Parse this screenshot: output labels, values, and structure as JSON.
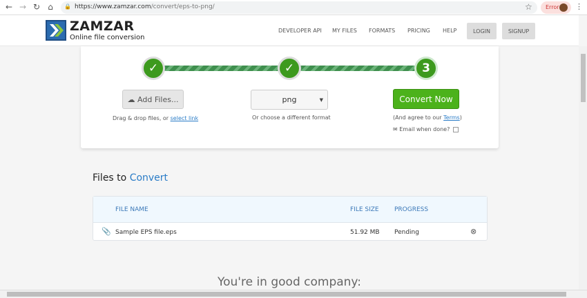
{
  "browser": {
    "url_host": "https://www.zamzar.com",
    "url_path": "/convert/eps-to-png/",
    "error_label": "Error"
  },
  "header": {
    "brand": "ZAMZAR",
    "tagline": "Online file conversion",
    "nav": [
      "DEVELOPER API",
      "MY FILES",
      "FORMATS",
      "PRICING",
      "HELP"
    ],
    "login": "LOGIN",
    "signup": "SIGNUP"
  },
  "steps": {
    "step3_label": "3",
    "add_files": "Add Files...",
    "drag_text": "Drag & drop files, or ",
    "select_link": "select link",
    "format_value": "png",
    "format_hint": "Or choose a different format",
    "convert": "Convert Now",
    "agree_pre": "(And agree to our ",
    "terms": "Terms",
    "agree_post": ")",
    "email_label": "Email when done?"
  },
  "files": {
    "title_pre": "Files to ",
    "title_hl": "Convert",
    "columns": [
      "FILE NAME",
      "FILE SIZE",
      "PROGRESS"
    ],
    "rows": [
      {
        "name": "Sample EPS file.eps",
        "size": "51.92 MB",
        "progress": "Pending"
      }
    ]
  },
  "company": "You're in good company:",
  "colors": {
    "accent": "#2a7cc7",
    "convert": "#4cb21b",
    "step": "#3d9a1e"
  }
}
